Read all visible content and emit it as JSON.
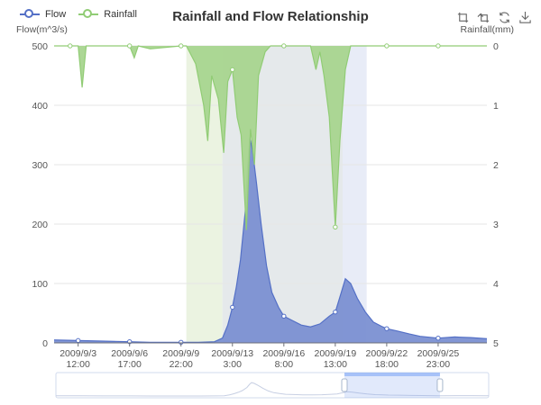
{
  "title": "Rainfall and Flow Relationship",
  "legend": [
    {
      "name": "Flow",
      "color": "#5470c6"
    },
    {
      "name": "Rainfall",
      "color": "#91cc75"
    }
  ],
  "toolbox": [
    "zoom-icon",
    "zoom-reset-icon",
    "restore-icon",
    "save-image-icon"
  ],
  "colors": {
    "flow_line": "#5470c6",
    "flow_area": "#7b90d2",
    "rain_line": "#91cc75",
    "rain_area": "#a8d58f",
    "mark_green": "#e7f1dc",
    "mark_gray": "#e0e5e8",
    "mark_blue": "#e4e9f6",
    "grid": "#e6e6e6",
    "axis": "#6e7079"
  },
  "chart_data": {
    "type": "line",
    "title": "Rainfall and Flow Relationship",
    "x_axis": {
      "type": "time",
      "range": [
        "2009-09-02",
        "2009-09-29"
      ],
      "tick_labels": [
        [
          "2009/9/3",
          "12:00"
        ],
        [
          "2009/9/6",
          "17:00"
        ],
        [
          "2009/9/9",
          "22:00"
        ],
        [
          "2009/9/13",
          "3:00"
        ],
        [
          "2009/9/16",
          "8:00"
        ],
        [
          "2009/9/19",
          "13:00"
        ],
        [
          "2009/9/22",
          "18:00"
        ],
        [
          "2009/9/25",
          "23:00"
        ]
      ]
    },
    "y_left": {
      "name": "Flow(m^3/s)",
      "min": 0,
      "max": 500,
      "ticks": [
        0,
        100,
        200,
        300,
        400,
        500
      ]
    },
    "y_right": {
      "name": "Rainfall(mm)",
      "min": 0,
      "max": 5,
      "ticks": [
        0,
        1,
        2,
        3,
        4,
        5
      ],
      "inverse": true
    },
    "grid": true,
    "legend_position": "top-left",
    "mark_areas": [
      {
        "start": "2009-09-10 06:00",
        "end": "2009-09-12 12:00",
        "tone": "green"
      },
      {
        "start": "2009-09-12 12:00",
        "end": "2009-09-20 00:00",
        "tone": "gray"
      },
      {
        "start": "2009-09-20 00:00",
        "end": "2009-09-21 12:00",
        "tone": "blue"
      }
    ],
    "series": [
      {
        "name": "Flow",
        "axis": "left",
        "points": [
          [
            "2009-09-02 00:00",
            5
          ],
          [
            "2009-09-03 12:00",
            4
          ],
          [
            "2009-09-05 00:00",
            3
          ],
          [
            "2009-09-06 17:00",
            2
          ],
          [
            "2009-09-08 00:00",
            1
          ],
          [
            "2009-09-09 22:00",
            1
          ],
          [
            "2009-09-11 00:00",
            1
          ],
          [
            "2009-09-12 00:00",
            2
          ],
          [
            "2009-09-12 12:00",
            8
          ],
          [
            "2009-09-12 20:00",
            30
          ],
          [
            "2009-09-13 03:00",
            60
          ],
          [
            "2009-09-13 09:00",
            95
          ],
          [
            "2009-09-13 15:00",
            140
          ],
          [
            "2009-09-13 22:00",
            220
          ],
          [
            "2009-09-14 02:00",
            300
          ],
          [
            "2009-09-14 05:00",
            345
          ],
          [
            "2009-09-14 09:00",
            325
          ],
          [
            "2009-09-14 15:00",
            270
          ],
          [
            "2009-09-14 22:00",
            200
          ],
          [
            "2009-09-15 06:00",
            130
          ],
          [
            "2009-09-15 14:00",
            85
          ],
          [
            "2009-09-16 00:00",
            60
          ],
          [
            "2009-09-16 08:00",
            45
          ],
          [
            "2009-09-16 20:00",
            38
          ],
          [
            "2009-09-17 10:00",
            30
          ],
          [
            "2009-09-18 00:00",
            27
          ],
          [
            "2009-09-18 14:00",
            32
          ],
          [
            "2009-09-19 04:00",
            45
          ],
          [
            "2009-09-19 13:00",
            52
          ],
          [
            "2009-09-19 22:00",
            85
          ],
          [
            "2009-09-20 04:00",
            108
          ],
          [
            "2009-09-20 12:00",
            100
          ],
          [
            "2009-09-20 22:00",
            75
          ],
          [
            "2009-09-21 10:00",
            52
          ],
          [
            "2009-09-21 22:00",
            35
          ],
          [
            "2009-09-22 10:00",
            28
          ],
          [
            "2009-09-22 18:00",
            24
          ],
          [
            "2009-09-23 10:00",
            20
          ],
          [
            "2009-09-24 04:00",
            15
          ],
          [
            "2009-09-24 20:00",
            11
          ],
          [
            "2009-09-25 23:00",
            8
          ],
          [
            "2009-09-27 00:00",
            10
          ],
          [
            "2009-09-28 00:00",
            9
          ],
          [
            "2009-09-29 00:00",
            7
          ]
        ]
      },
      {
        "name": "Rainfall",
        "axis": "right",
        "points": [
          [
            "2009-09-02 00:00",
            0
          ],
          [
            "2009-09-03 00:00",
            0
          ],
          [
            "2009-09-03 12:00",
            0
          ],
          [
            "2009-09-03 18:00",
            0.7
          ],
          [
            "2009-09-04 00:00",
            0
          ],
          [
            "2009-09-05 00:00",
            0
          ],
          [
            "2009-09-06 17:00",
            0
          ],
          [
            "2009-09-07 00:00",
            0.2
          ],
          [
            "2009-09-07 06:00",
            0
          ],
          [
            "2009-09-08 00:00",
            0.05
          ],
          [
            "2009-09-09 22:00",
            0
          ],
          [
            "2009-09-10 06:00",
            0
          ],
          [
            "2009-09-10 20:00",
            0.3
          ],
          [
            "2009-09-11 08:00",
            1.0
          ],
          [
            "2009-09-11 14:00",
            1.6
          ],
          [
            "2009-09-11 20:00",
            0.5
          ],
          [
            "2009-09-12 06:00",
            0.9
          ],
          [
            "2009-09-12 14:00",
            1.8
          ],
          [
            "2009-09-12 20:00",
            0.6
          ],
          [
            "2009-09-13 03:00",
            0.4
          ],
          [
            "2009-09-13 10:00",
            1.2
          ],
          [
            "2009-09-13 16:00",
            1.5
          ],
          [
            "2009-09-14 00:00",
            3.1
          ],
          [
            "2009-09-14 06:00",
            1.4
          ],
          [
            "2009-09-14 12:00",
            2.0
          ],
          [
            "2009-09-14 18:00",
            0.5
          ],
          [
            "2009-09-15 04:00",
            0.1
          ],
          [
            "2009-09-15 12:00",
            0
          ],
          [
            "2009-09-16 08:00",
            0
          ],
          [
            "2009-09-18 00:00",
            0
          ],
          [
            "2009-09-18 08:00",
            0.4
          ],
          [
            "2009-09-18 14:00",
            0.1
          ],
          [
            "2009-09-18 20:00",
            0.5
          ],
          [
            "2009-09-19 04:00",
            1.2
          ],
          [
            "2009-09-19 13:00",
            3.05
          ],
          [
            "2009-09-19 20:00",
            1.6
          ],
          [
            "2009-09-20 04:00",
            0.4
          ],
          [
            "2009-09-20 12:00",
            0
          ],
          [
            "2009-09-22 18:00",
            0
          ],
          [
            "2009-09-25 23:00",
            0
          ],
          [
            "2009-09-29 00:00",
            0
          ]
        ]
      }
    ],
    "data_zoom": {
      "full_range": [
        "2009-09-02",
        "2009-09-29"
      ],
      "window_start": "2009-09-20 00:00",
      "window_end": "2009-09-25 23:00"
    }
  }
}
